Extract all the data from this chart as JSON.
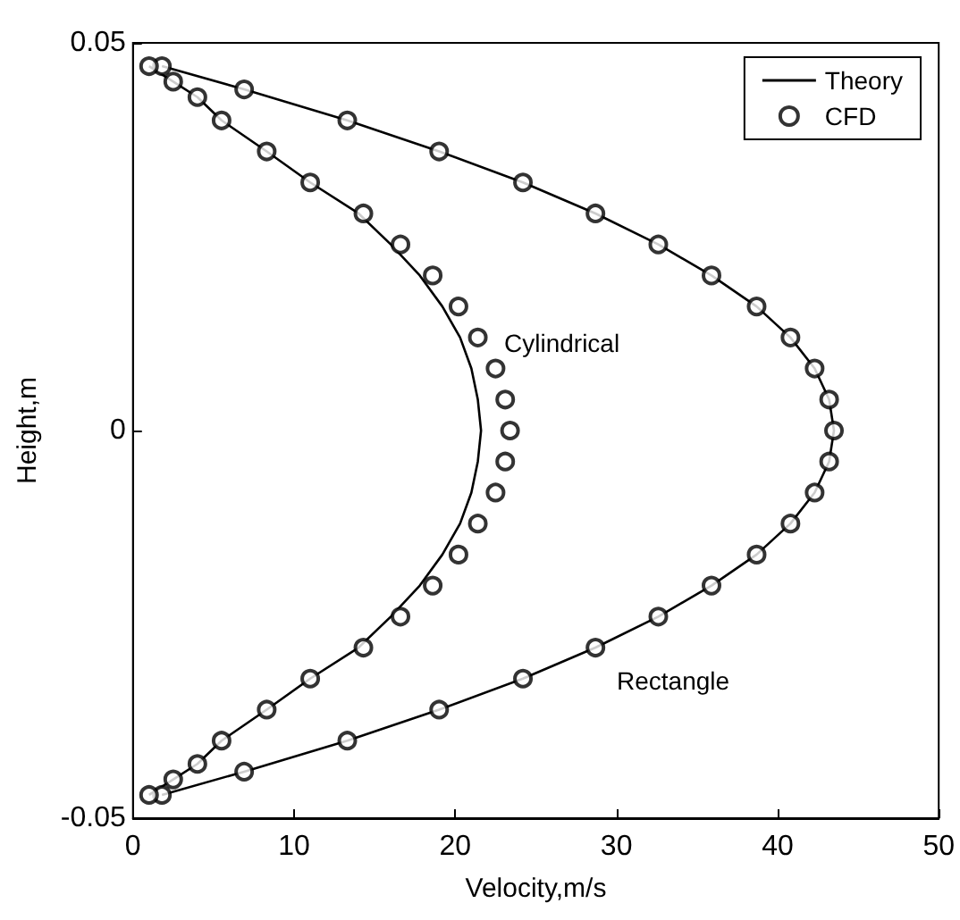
{
  "chart_data": {
    "type": "line",
    "xlabel": "Velocity,m/s",
    "ylabel": "Height,m",
    "xlim": [
      0,
      50
    ],
    "xticks": [
      0,
      10,
      20,
      30,
      40,
      50
    ],
    "ylim": [
      -0.05,
      0.05
    ],
    "yticks": [
      -0.05,
      0,
      0.05
    ],
    "grid": false,
    "legend": "top right",
    "annotations": [
      "Cylindrical",
      "Rectangle"
    ],
    "series": [
      {
        "name": "Theory",
        "color": "#000000",
        "marker": "none",
        "line_style": "solid",
        "x": [
          1.8,
          6.9,
          13.3,
          19.0,
          24.2,
          28.7,
          32.6,
          35.9,
          38.7,
          40.8,
          42.3,
          43.2,
          43.5,
          43.2,
          42.3,
          40.8,
          38.7,
          35.9,
          32.6,
          28.7,
          24.2,
          19.0,
          13.3,
          6.9,
          1.8
        ],
        "values": [
          0.047,
          0.044,
          0.04,
          0.036,
          0.032,
          0.028,
          0.024,
          0.02,
          0.016,
          0.012,
          0.008,
          0.004,
          0,
          -0.004,
          -0.008,
          -0.012,
          -0.016,
          -0.02,
          -0.024,
          -0.028,
          -0.032,
          -0.036,
          -0.04,
          -0.044,
          -0.047
        ]
      },
      {
        "color": "#000000",
        "marker": "none",
        "line_style": "solid",
        "x": [
          1.0,
          2.5,
          4.0,
          5.5,
          8.3,
          11.0,
          14.0,
          16.0,
          17.8,
          19.2,
          20.3,
          21.0,
          21.4,
          21.6,
          21.4,
          21.0,
          20.3,
          19.2,
          17.8,
          16.0,
          14.0,
          11.0,
          8.3,
          5.5,
          4.0,
          2.5,
          1.0
        ],
        "values": [
          0.047,
          0.045,
          0.043,
          0.04,
          0.036,
          0.032,
          0.028,
          0.024,
          0.02,
          0.016,
          0.012,
          0.008,
          0.004,
          0,
          -0.004,
          -0.008,
          -0.012,
          -0.016,
          -0.02,
          -0.024,
          -0.028,
          -0.032,
          -0.036,
          -0.04,
          -0.043,
          -0.045,
          -0.047
        ]
      },
      {
        "name": "CFD",
        "type": "scatter",
        "color": "#000000",
        "marker": "circle",
        "x": [
          1.8,
          6.9,
          13.3,
          19.0,
          24.2,
          28.7,
          32.6,
          35.9,
          38.7,
          40.8,
          42.3,
          43.2,
          43.5,
          43.2,
          42.3,
          40.8,
          38.7,
          35.9,
          32.6,
          28.7,
          24.2,
          19.0,
          13.3,
          6.9,
          1.8
        ],
        "values": [
          0.047,
          0.044,
          0.04,
          0.036,
          0.032,
          0.028,
          0.024,
          0.02,
          0.016,
          0.012,
          0.008,
          0.004,
          0,
          -0.004,
          -0.008,
          -0.012,
          -0.016,
          -0.02,
          -0.024,
          -0.028,
          -0.032,
          -0.036,
          -0.04,
          -0.044,
          -0.047
        ]
      },
      {
        "type": "scatter",
        "color": "#000000",
        "marker": "circle",
        "x": [
          1.0,
          2.5,
          4.0,
          5.5,
          8.3,
          11.0,
          14.3,
          16.6,
          18.6,
          20.2,
          21.4,
          22.5,
          23.1,
          23.4,
          23.1,
          22.5,
          21.4,
          20.2,
          18.6,
          16.6,
          14.3,
          11.0,
          8.3,
          5.5,
          4.0,
          2.5,
          1.0
        ],
        "values": [
          0.047,
          0.045,
          0.043,
          0.04,
          0.036,
          0.032,
          0.028,
          0.024,
          0.02,
          0.016,
          0.012,
          0.008,
          0.004,
          0,
          -0.004,
          -0.008,
          -0.012,
          -0.016,
          -0.02,
          -0.024,
          -0.028,
          -0.032,
          -0.036,
          -0.04,
          -0.043,
          -0.045,
          -0.047
        ]
      }
    ]
  }
}
